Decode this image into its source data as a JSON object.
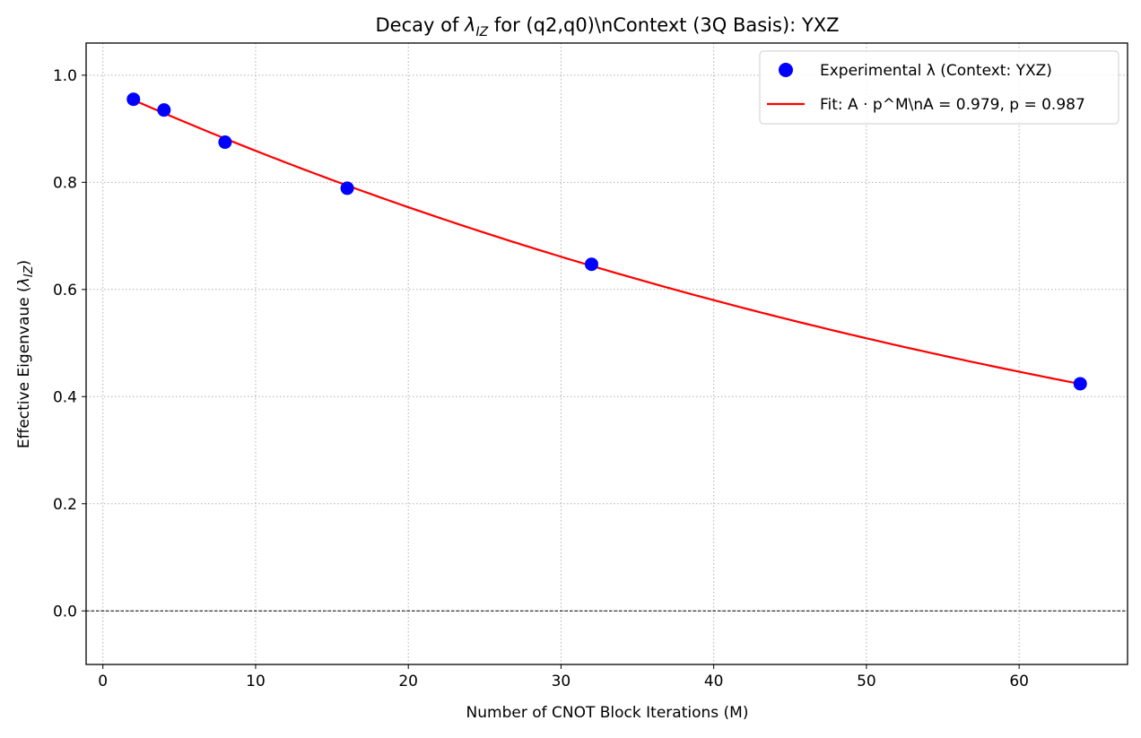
{
  "chart_data": {
    "type": "scatter",
    "title": {
      "prefix": "Decay of ",
      "lambda": "λ",
      "lambda_sub": "IZ",
      "suffix": " for (q2,q0)\\nContext (3Q Basis): YXZ"
    },
    "xlabel": "Number of CNOT Block Iterations (M)",
    "ylabel": {
      "text": "Effective Eigenvaue (",
      "lambda": "λ",
      "lambda_sub": "IZ",
      "close": ")"
    },
    "xlim": [
      -1.1,
      67.1
    ],
    "ylim": [
      -0.1,
      1.06
    ],
    "xticks": [
      0,
      10,
      20,
      30,
      40,
      50,
      60
    ],
    "xtick_labels": [
      "0",
      "10",
      "20",
      "30",
      "40",
      "50",
      "60"
    ],
    "yticks": [
      0.0,
      0.2,
      0.4,
      0.6,
      0.8,
      1.0
    ],
    "ytick_labels": [
      "0.0",
      "0.2",
      "0.4",
      "0.6",
      "0.8",
      "1.0"
    ],
    "grid": true,
    "zero_line": true,
    "legend_position": "top-right",
    "series": [
      {
        "kind": "scatter",
        "color": "#0000ff",
        "x": [
          2,
          4,
          8,
          16,
          32,
          64
        ],
        "y": [
          0.955,
          0.935,
          0.875,
          0.789,
          0.647,
          0.424
        ]
      },
      {
        "kind": "line",
        "color": "#ff0000",
        "A": 0.979,
        "p": 0.987,
        "x_range": [
          2,
          64
        ]
      }
    ],
    "legend": [
      {
        "kind": "scatter",
        "color": "#0000ff",
        "text": "Experimental λ (Context: YXZ)"
      },
      {
        "kind": "line",
        "color": "#ff0000",
        "text": "Fit: A · p^M\\nA = 0.979, p = 0.987"
      }
    ]
  }
}
